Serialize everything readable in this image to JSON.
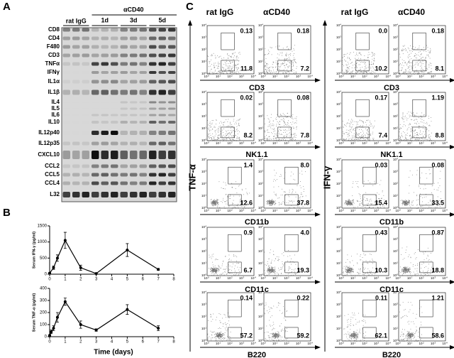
{
  "panel_a": {
    "label": "A",
    "groups": [
      "rat IgG",
      "αCD40"
    ],
    "timepoints": [
      "1d",
      "3d",
      "5d"
    ],
    "genes": [
      "CD8",
      "CD4",
      "F480",
      "CD3",
      "TNFα",
      "IFNγ",
      "IL1α",
      "IL1β",
      "IL4",
      "IL5",
      "IL6",
      "IL10",
      "IL12p40",
      "IL12p35",
      "CXCL10",
      "CCL2",
      "CCL5",
      "CCL4",
      "L32"
    ]
  },
  "panel_b": {
    "label": "B",
    "x_label": "Time (days)",
    "charts": [
      {
        "type": "line",
        "y_label": "Serum IFN-γ (pg/ml)",
        "x": [
          0,
          0.25,
          0.5,
          1,
          2,
          3,
          5,
          7
        ],
        "values": [
          30,
          200,
          500,
          1050,
          200,
          20,
          750,
          150
        ],
        "errors": [
          20,
          50,
          100,
          250,
          80,
          10,
          200,
          30
        ],
        "xlim": [
          0,
          8
        ],
        "xticks": [
          0,
          1,
          2,
          3,
          4,
          5,
          6,
          7,
          8
        ],
        "ylim": [
          0,
          1500
        ],
        "yticks": [
          0,
          500,
          1000,
          1500
        ],
        "color": "#000000"
      },
      {
        "type": "line",
        "y_label": "Serum TNF-α (pg/ml)",
        "x": [
          0,
          0.1,
          0.25,
          0.5,
          1,
          2,
          3,
          5,
          7
        ],
        "values": [
          10,
          40,
          70,
          160,
          290,
          100,
          55,
          225,
          70
        ],
        "errors": [
          5,
          15,
          20,
          40,
          30,
          30,
          10,
          40,
          20
        ],
        "xlim": [
          0,
          8
        ],
        "xticks": [
          0,
          1,
          2,
          3,
          4,
          5,
          6,
          7,
          8
        ],
        "ylim": [
          0,
          400
        ],
        "yticks": [
          0,
          100,
          200,
          300,
          400
        ],
        "color": "#000000"
      }
    ]
  },
  "panel_c": {
    "label": "C",
    "columns": [
      "rat IgG",
      "αCD40"
    ],
    "tick_base": "10",
    "tick_exponents": [
      "0",
      "1",
      "2",
      "3",
      "4"
    ],
    "halves": [
      {
        "y_label": "TNF-α",
        "rows": [
          {
            "marker": "CD3",
            "values": [
              [
                "0.13",
                "11.8"
              ],
              [
                "0.18",
                "7.2"
              ]
            ]
          },
          {
            "marker": "NK1.1",
            "values": [
              [
                "0.02",
                "8.2"
              ],
              [
                "0.08",
                "7.8"
              ]
            ]
          },
          {
            "marker": "CD11b",
            "values": [
              [
                "1.4",
                "12.6"
              ],
              [
                "8.0",
                "37.8"
              ]
            ]
          },
          {
            "marker": "CD11c",
            "values": [
              [
                "0.9",
                "6.7"
              ],
              [
                "4.0",
                "19.3"
              ]
            ]
          },
          {
            "marker": "B220",
            "values": [
              [
                "0.14",
                "57.2"
              ],
              [
                "0.22",
                "59.2"
              ]
            ]
          }
        ]
      },
      {
        "y_label": "IFN-γ",
        "rows": [
          {
            "marker": "CD3",
            "values": [
              [
                "0.0",
                "10.2"
              ],
              [
                "0.18",
                "8.1"
              ]
            ]
          },
          {
            "marker": "NK1.1",
            "values": [
              [
                "0.17",
                "7.4"
              ],
              [
                "1.19",
                "8.8"
              ]
            ]
          },
          {
            "marker": "CD11b",
            "values": [
              [
                "0.03",
                "15.4"
              ],
              [
                "0.08",
                "33.5"
              ]
            ]
          },
          {
            "marker": "CD11c",
            "values": [
              [
                "0.43",
                "10.3"
              ],
              [
                "0.87",
                "18.8"
              ]
            ]
          },
          {
            "marker": "B220",
            "values": [
              [
                "0.11",
                "62.1"
              ],
              [
                "1.21",
                "58.6"
              ]
            ]
          }
        ]
      }
    ]
  }
}
